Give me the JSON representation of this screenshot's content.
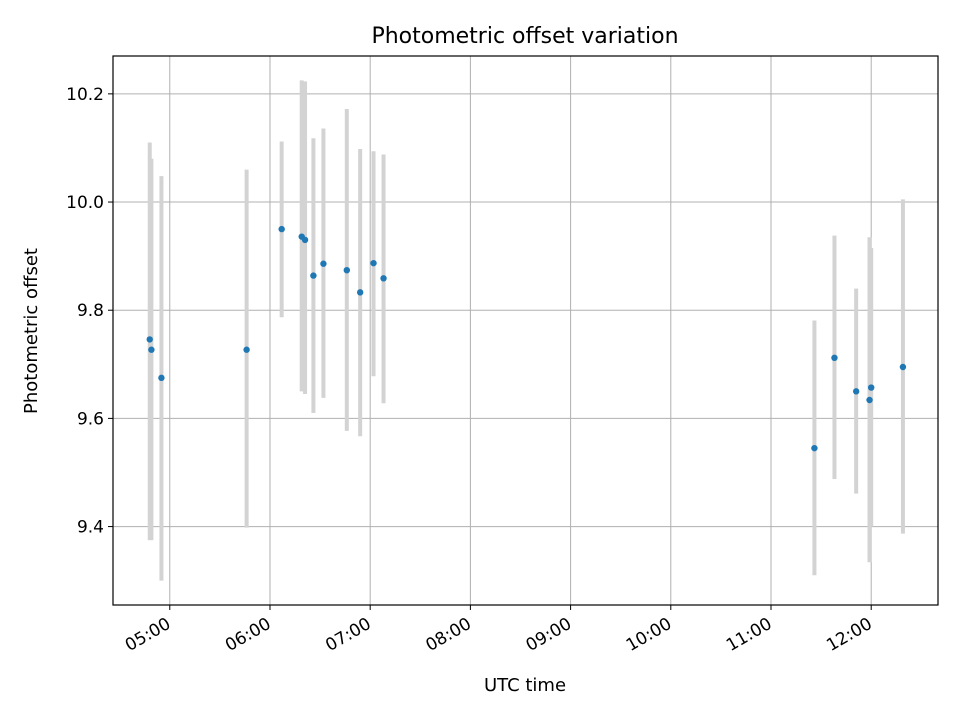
{
  "chart_data": {
    "type": "scatter",
    "title": "Photometric offset variation",
    "xlabel": "UTC time",
    "ylabel": "Photometric offset",
    "x_axis_type": "time",
    "xlim": [
      "04:26",
      "12:40"
    ],
    "ylim": [
      9.255,
      10.27
    ],
    "x_ticks": [
      "05:00",
      "06:00",
      "07:00",
      "08:00",
      "09:00",
      "10:00",
      "11:00",
      "12:00"
    ],
    "y_ticks": [
      9.4,
      9.6,
      9.8,
      10.0,
      10.2
    ],
    "y_tick_labels": [
      "9.4",
      "9.6",
      "9.8",
      "10.0",
      "10.2"
    ],
    "grid": true,
    "series": [
      {
        "marker_color": "#1f77b4",
        "errorbar_color": "#d3d3d3",
        "points": [
          {
            "x": "04:48",
            "y": 9.746,
            "ylow": 9.375,
            "yhigh": 10.11
          },
          {
            "x": "04:49",
            "y": 9.727,
            "ylow": 9.375,
            "yhigh": 10.08
          },
          {
            "x": "04:55",
            "y": 9.675,
            "ylow": 9.3,
            "yhigh": 10.048
          },
          {
            "x": "05:46",
            "y": 9.727,
            "ylow": 9.398,
            "yhigh": 10.06
          },
          {
            "x": "06:07",
            "y": 9.95,
            "ylow": 9.787,
            "yhigh": 10.112
          },
          {
            "x": "06:19",
            "y": 9.936,
            "ylow": 9.65,
            "yhigh": 10.225
          },
          {
            "x": "06:21",
            "y": 9.93,
            "ylow": 9.645,
            "yhigh": 10.223
          },
          {
            "x": "06:26",
            "y": 9.864,
            "ylow": 9.61,
            "yhigh": 10.118
          },
          {
            "x": "06:32",
            "y": 9.886,
            "ylow": 9.638,
            "yhigh": 10.136
          },
          {
            "x": "06:46",
            "y": 9.874,
            "ylow": 9.577,
            "yhigh": 10.172
          },
          {
            "x": "06:54",
            "y": 9.833,
            "ylow": 9.567,
            "yhigh": 10.098
          },
          {
            "x": "07:02",
            "y": 9.887,
            "ylow": 9.678,
            "yhigh": 10.094
          },
          {
            "x": "07:08",
            "y": 9.859,
            "ylow": 9.628,
            "yhigh": 10.088
          },
          {
            "x": "11:26",
            "y": 9.545,
            "ylow": 9.31,
            "yhigh": 9.781
          },
          {
            "x": "11:38",
            "y": 9.712,
            "ylow": 9.488,
            "yhigh": 9.938
          },
          {
            "x": "11:51",
            "y": 9.65,
            "ylow": 9.461,
            "yhigh": 9.84
          },
          {
            "x": "11:59",
            "y": 9.634,
            "ylow": 9.334,
            "yhigh": 9.935
          },
          {
            "x": "12:00",
            "y": 9.657,
            "ylow": 9.4,
            "yhigh": 9.915
          },
          {
            "x": "12:19",
            "y": 9.695,
            "ylow": 9.387,
            "yhigh": 10.005
          }
        ]
      }
    ]
  }
}
